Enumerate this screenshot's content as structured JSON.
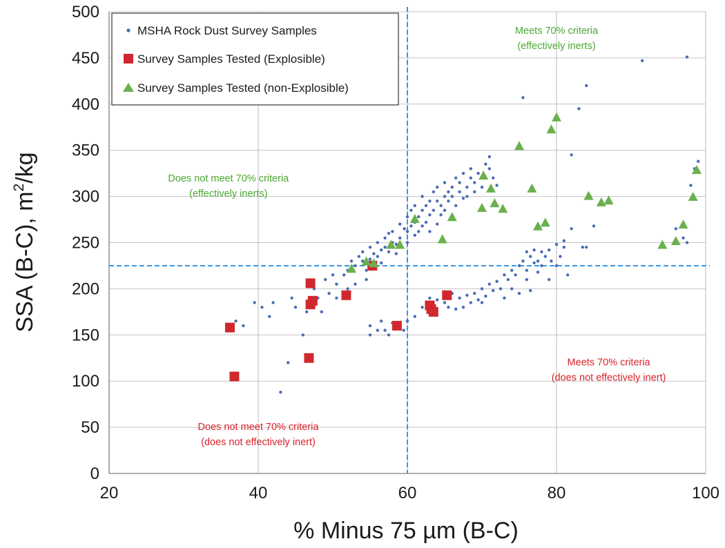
{
  "chart_data": {
    "type": "scatter",
    "xlabel": "% Minus 75 µm (B-C)",
    "ylabel_main": "SSA (B-C), m",
    "ylabel_sup": "2",
    "ylabel_unit": "/kg",
    "xlim": [
      20,
      100
    ],
    "ylim": [
      0,
      500
    ],
    "xticks": [
      "20",
      "40",
      "60",
      "80",
      "100"
    ],
    "yticks": [
      "0",
      "50",
      "100",
      "150",
      "200",
      "250",
      "300",
      "350",
      "400",
      "450",
      "500"
    ],
    "grid": true,
    "legend_position": "top-left",
    "colors": {
      "survey": "#4a6bb5",
      "explosible": "#d0282e",
      "non_explosible": "#6ab04c",
      "threshold_line": "#3a96e0",
      "annot_green": "#4aa832",
      "annot_red": "#d9222a"
    },
    "reference_lines": {
      "x": 60,
      "y": 225
    },
    "legend": [
      "MSHA Rock Dust Survey Samples",
      "Survey Samples Tested (Explosible)",
      "Survey Samples Tested (non-Explosible)"
    ],
    "annotations": [
      {
        "lines": [
          "Meets 70% criteria",
          "(effectively inerts)"
        ],
        "x": 80,
        "y": 476,
        "color": "green"
      },
      {
        "lines": [
          "Does not meet 70% criteria",
          "(effectively inerts)"
        ],
        "x": 36,
        "y": 316,
        "color": "green"
      },
      {
        "lines": [
          "Meets 70% criteria",
          "(does not effectively inert)"
        ],
        "x": 87,
        "y": 117,
        "color": "red"
      },
      {
        "lines": [
          "Does not meet 70% criteria",
          "(does not effectively inert)"
        ],
        "x": 40,
        "y": 47,
        "color": "red"
      }
    ],
    "series": [
      {
        "name": "Survey Samples Tested (Explosible)",
        "marker": "square",
        "points": [
          [
            36.2,
            158
          ],
          [
            36.8,
            105
          ],
          [
            46.8,
            125
          ],
          [
            47,
            206
          ],
          [
            47,
            183
          ],
          [
            47.3,
            187
          ],
          [
            51.8,
            193
          ],
          [
            55.3,
            225
          ],
          [
            58.6,
            160
          ],
          [
            63,
            182
          ],
          [
            63.2,
            178
          ],
          [
            63.5,
            175
          ],
          [
            65.3,
            193
          ]
        ]
      },
      {
        "name": "Survey Samples Tested (non-Explosible)",
        "marker": "triangle",
        "points": [
          [
            52.5,
            221
          ],
          [
            54.5,
            229
          ],
          [
            55.5,
            227
          ],
          [
            57.8,
            247
          ],
          [
            59,
            247
          ],
          [
            61,
            275
          ],
          [
            64.7,
            253
          ],
          [
            66,
            277
          ],
          [
            70.2,
            322
          ],
          [
            70,
            287
          ],
          [
            71.2,
            308
          ],
          [
            71.7,
            292
          ],
          [
            72.8,
            286
          ],
          [
            75,
            354
          ],
          [
            76.7,
            308
          ],
          [
            77.5,
            267
          ],
          [
            78.5,
            271
          ],
          [
            79.3,
            372
          ],
          [
            80,
            385
          ],
          [
            84.3,
            300
          ],
          [
            86,
            293
          ],
          [
            87,
            295
          ],
          [
            94.2,
            247
          ],
          [
            96,
            251
          ],
          [
            97,
            269
          ],
          [
            98.3,
            299
          ],
          [
            98.8,
            328
          ]
        ]
      },
      {
        "name": "MSHA Rock Dust Survey Samples",
        "marker": "dot",
        "points": [
          [
            37,
            165
          ],
          [
            38,
            160
          ],
          [
            39.5,
            185
          ],
          [
            40.5,
            180
          ],
          [
            41.5,
            170
          ],
          [
            42,
            185
          ],
          [
            43,
            88
          ],
          [
            44,
            120
          ],
          [
            44.5,
            190
          ],
          [
            45,
            180
          ],
          [
            46,
            150
          ],
          [
            46.5,
            175
          ],
          [
            47.5,
            200
          ],
          [
            48,
            190
          ],
          [
            48.5,
            175
          ],
          [
            49,
            210
          ],
          [
            50,
            215
          ],
          [
            50.5,
            190
          ],
          [
            52,
            220
          ],
          [
            52.5,
            230
          ],
          [
            53,
            225
          ],
          [
            53.5,
            235
          ],
          [
            54,
            230
          ],
          [
            54,
            240
          ],
          [
            54.5,
            220
          ],
          [
            55,
            245
          ],
          [
            55,
            232
          ],
          [
            55.5,
            238
          ],
          [
            56,
            250
          ],
          [
            56,
            235
          ],
          [
            56.5,
            228
          ],
          [
            56.5,
            242
          ],
          [
            57,
            255
          ],
          [
            57,
            245
          ],
          [
            57.5,
            240
          ],
          [
            57.5,
            260
          ],
          [
            58,
            250
          ],
          [
            58,
            262
          ],
          [
            58.5,
            238
          ],
          [
            58.5,
            248
          ],
          [
            59,
            270
          ],
          [
            59,
            255
          ],
          [
            59.3,
            245
          ],
          [
            59.6,
            265
          ],
          [
            60,
            262
          ],
          [
            60,
            278
          ],
          [
            60,
            250
          ],
          [
            60.5,
            268
          ],
          [
            60.5,
            285
          ],
          [
            61,
            258
          ],
          [
            61,
            272
          ],
          [
            61,
            290
          ],
          [
            61.5,
            262
          ],
          [
            61.5,
            278
          ],
          [
            62,
            268
          ],
          [
            62,
            285
          ],
          [
            62,
            300
          ],
          [
            62.5,
            272
          ],
          [
            62.5,
            290
          ],
          [
            63,
            280
          ],
          [
            63,
            295
          ],
          [
            63,
            262
          ],
          [
            63.5,
            305
          ],
          [
            63.5,
            285
          ],
          [
            64,
            270
          ],
          [
            64,
            295
          ],
          [
            64,
            310
          ],
          [
            64.5,
            290
          ],
          [
            64.5,
            280
          ],
          [
            65,
            300
          ],
          [
            65,
            285
          ],
          [
            65,
            315
          ],
          [
            65.5,
            295
          ],
          [
            65.5,
            305
          ],
          [
            66,
            300
          ],
          [
            66,
            310
          ],
          [
            66.5,
            290
          ],
          [
            66.5,
            320
          ],
          [
            67,
            305
          ],
          [
            67,
            315
          ],
          [
            67.5,
            298
          ],
          [
            67.5,
            325
          ],
          [
            68,
            310
          ],
          [
            68,
            300
          ],
          [
            68.5,
            320
          ],
          [
            68.5,
            330
          ],
          [
            69,
            315
          ],
          [
            69,
            305
          ],
          [
            69.5,
            325
          ],
          [
            70,
            310
          ],
          [
            70.5,
            335
          ],
          [
            71,
            330
          ],
          [
            71,
            343
          ],
          [
            71.5,
            320
          ],
          [
            72,
            312
          ],
          [
            55,
            150
          ],
          [
            55,
            160
          ],
          [
            56,
            155
          ],
          [
            56.5,
            165
          ],
          [
            57,
            155
          ],
          [
            57.5,
            150
          ],
          [
            58,
            163
          ],
          [
            59.5,
            155
          ],
          [
            60,
            165
          ],
          [
            61,
            170
          ],
          [
            62,
            180
          ],
          [
            63,
            190
          ],
          [
            64,
            188
          ],
          [
            65,
            185
          ],
          [
            65.5,
            180
          ],
          [
            66,
            195
          ],
          [
            66.5,
            178
          ],
          [
            67,
            190
          ],
          [
            67.5,
            180
          ],
          [
            68,
            193
          ],
          [
            68.5,
            185
          ],
          [
            69,
            195
          ],
          [
            69.5,
            188
          ],
          [
            70,
            200
          ],
          [
            70,
            185
          ],
          [
            70.5,
            192
          ],
          [
            71,
            205
          ],
          [
            71.5,
            198
          ],
          [
            72,
            208
          ],
          [
            72.5,
            200
          ],
          [
            73,
            215
          ],
          [
            73,
            190
          ],
          [
            73.5,
            210
          ],
          [
            74,
            220
          ],
          [
            74,
            200
          ],
          [
            74.5,
            215
          ],
          [
            75,
            225
          ],
          [
            75,
            195
          ],
          [
            75.5,
            230
          ],
          [
            76,
            240
          ],
          [
            76,
            220
          ],
          [
            76,
            210
          ],
          [
            76.5,
            235
          ],
          [
            76.5,
            198
          ],
          [
            77,
            242
          ],
          [
            77,
            228
          ],
          [
            77.5,
            230
          ],
          [
            77.5,
            218
          ],
          [
            78,
            240
          ],
          [
            78,
            225
          ],
          [
            78.5,
            235
          ],
          [
            79,
            242
          ],
          [
            79,
            210
          ],
          [
            79.3,
            230
          ],
          [
            80,
            248
          ],
          [
            80,
            225
          ],
          [
            80.5,
            235
          ],
          [
            81,
            252
          ],
          [
            81,
            245
          ],
          [
            81.5,
            215
          ],
          [
            82,
            265
          ],
          [
            82,
            345
          ],
          [
            83,
            395
          ],
          [
            83.5,
            245
          ],
          [
            84,
            245
          ],
          [
            84.5,
            300
          ],
          [
            85,
            268
          ],
          [
            75.5,
            407
          ],
          [
            84,
            420
          ],
          [
            91.5,
            447
          ],
          [
            97.5,
            451
          ],
          [
            96,
            265
          ],
          [
            97,
            255
          ],
          [
            97.5,
            250
          ],
          [
            98,
            312
          ],
          [
            98.5,
            330
          ],
          [
            99,
            338
          ],
          [
            52,
            200
          ],
          [
            53,
            205
          ],
          [
            54.5,
            210
          ],
          [
            49.5,
            195
          ],
          [
            50.5,
            205
          ],
          [
            51.5,
            215
          ]
        ]
      }
    ]
  }
}
